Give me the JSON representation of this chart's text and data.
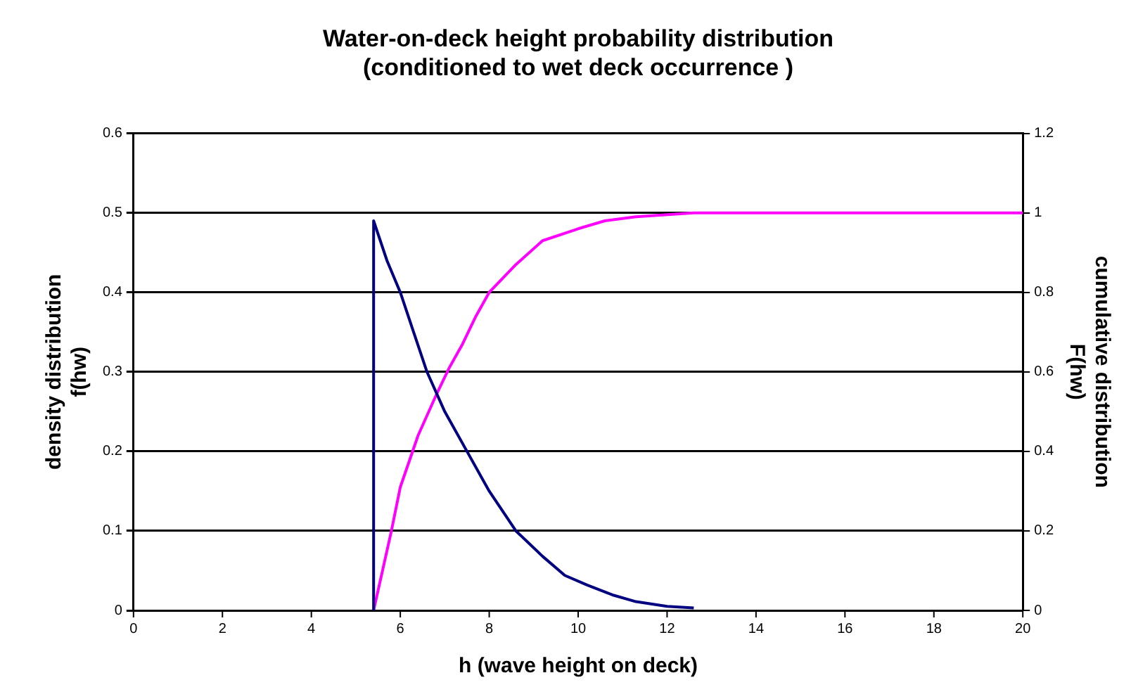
{
  "chart_data": {
    "type": "line",
    "title": "Water-on-deck height probability distribution\n(conditioned to wet deck occurrence )",
    "xlabel": "h (wave height on deck)",
    "ylabel": "density distribution\nf(hw)",
    "y2label": "cumulative distribution\nF(hw)",
    "series": [
      {
        "color": "#000080",
        "x": [
          5.4,
          5.4,
          5.7,
          6.0,
          6.3,
          6.6,
          7.0,
          7.5,
          8.0,
          8.6,
          9.2,
          9.7,
          10.2,
          10.8,
          11.3,
          12.0,
          12.6
        ],
        "values": [
          0,
          0.49,
          0.44,
          0.4,
          0.35,
          0.3,
          0.25,
          0.2,
          0.15,
          0.1,
          0.068,
          0.044,
          0.032,
          0.019,
          0.011,
          0.005,
          0.003
        ]
      },
      {
        "color": "#ff00ff",
        "axis": "y2",
        "x": [
          5.4,
          5.6,
          5.8,
          6.0,
          6.4,
          6.8,
          7.1,
          7.4,
          7.7,
          8.0,
          8.6,
          9.2,
          10.0,
          10.6,
          11.3,
          12.6,
          20
        ],
        "values": [
          0,
          0.1,
          0.2,
          0.31,
          0.44,
          0.54,
          0.61,
          0.67,
          0.74,
          0.8,
          0.87,
          0.93,
          0.96,
          0.98,
          0.99,
          1,
          1
        ]
      }
    ],
    "xlim": [
      0,
      20
    ],
    "xticks": [
      0,
      2,
      4,
      6,
      8,
      10,
      12,
      14,
      16,
      18,
      20
    ],
    "ylim": [
      0,
      0.6
    ],
    "yticks": [
      0,
      0.1,
      0.2,
      0.3,
      0.4,
      0.5,
      0.6
    ],
    "y2lim": [
      0,
      1.2
    ],
    "y2ticks": [
      0,
      0.2,
      0.4,
      0.6,
      0.8,
      1,
      1.2
    ],
    "grid": "y",
    "legend": false,
    "marker": "none",
    "line_style": "solid"
  }
}
